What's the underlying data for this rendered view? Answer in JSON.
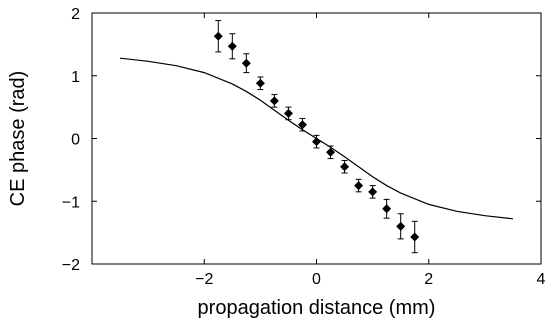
{
  "chart_data": {
    "type": "scatter",
    "title": "",
    "xlabel": "propagation distance (mm)",
    "ylabel": "CE phase (rad)",
    "xlim": [
      -4,
      4
    ],
    "ylim": [
      -2,
      2
    ],
    "xticks": [
      -2,
      0,
      2,
      4
    ],
    "xtick_labels": [
      "−2",
      "0",
      "2",
      "4"
    ],
    "yticks": [
      -2,
      -1,
      0,
      1,
      2
    ],
    "ytick_labels": [
      "−2",
      "−1",
      "0",
      "1",
      "2"
    ],
    "grid": false,
    "legend": "none",
    "series": [
      {
        "kind": "points_with_error_bars",
        "marker": "diamond",
        "points": [
          {
            "x": -1.75,
            "y": 1.63,
            "err": 0.25
          },
          {
            "x": -1.5,
            "y": 1.47,
            "err": 0.2
          },
          {
            "x": -1.25,
            "y": 1.2,
            "err": 0.15
          },
          {
            "x": -1.0,
            "y": 0.88,
            "err": 0.1
          },
          {
            "x": -0.75,
            "y": 0.6,
            "err": 0.1
          },
          {
            "x": -0.5,
            "y": 0.4,
            "err": 0.1
          },
          {
            "x": -0.25,
            "y": 0.22,
            "err": 0.1
          },
          {
            "x": 0.0,
            "y": -0.05,
            "err": 0.1
          },
          {
            "x": 0.25,
            "y": -0.22,
            "err": 0.1
          },
          {
            "x": 0.5,
            "y": -0.45,
            "err": 0.1
          },
          {
            "x": 0.75,
            "y": -0.75,
            "err": 0.1
          },
          {
            "x": 1.0,
            "y": -0.85,
            "err": 0.1
          },
          {
            "x": 1.25,
            "y": -1.12,
            "err": 0.15
          },
          {
            "x": 1.5,
            "y": -1.4,
            "err": 0.2
          },
          {
            "x": 1.75,
            "y": -1.57,
            "err": 0.25
          }
        ]
      },
      {
        "kind": "curve",
        "x": [
          -3.5,
          -3.0,
          -2.5,
          -2.0,
          -1.5,
          -1.25,
          -1.0,
          -0.75,
          -0.5,
          -0.25,
          0.0,
          0.25,
          0.5,
          0.75,
          1.0,
          1.25,
          1.5,
          2.0,
          2.5,
          3.0,
          3.5
        ],
        "y": [
          1.28,
          1.23,
          1.16,
          1.05,
          0.87,
          0.75,
          0.61,
          0.45,
          0.29,
          0.14,
          0.0,
          -0.14,
          -0.29,
          -0.45,
          -0.61,
          -0.75,
          -0.87,
          -1.05,
          -1.16,
          -1.23,
          -1.28
        ]
      }
    ]
  }
}
